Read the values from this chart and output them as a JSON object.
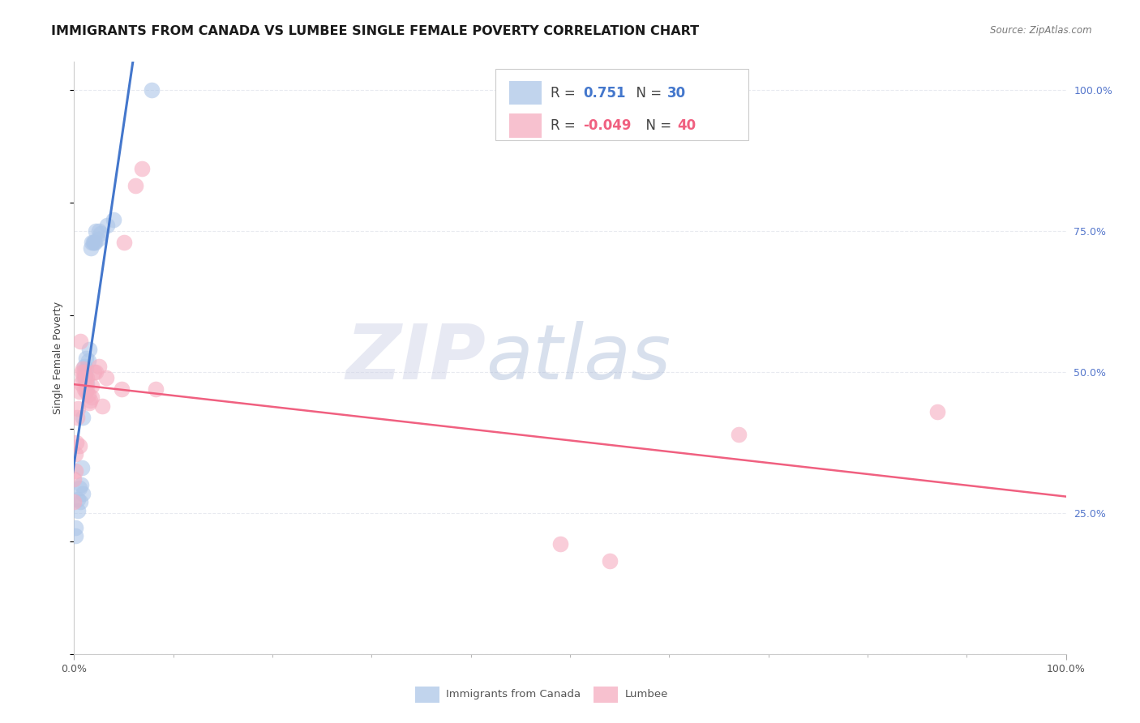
{
  "title": "IMMIGRANTS FROM CANADA VS LUMBEE SINGLE FEMALE POVERTY CORRELATION CHART",
  "source": "Source: ZipAtlas.com",
  "ylabel": "Single Female Poverty",
  "legend_label1": "Immigrants from Canada",
  "legend_label2": "Lumbee",
  "r1": 0.751,
  "n1": 30,
  "r2": -0.049,
  "n2": 40,
  "blue_scatter_color": "#adc6e8",
  "pink_scatter_color": "#f5adc0",
  "blue_line_color": "#4477cc",
  "pink_line_color": "#f06080",
  "grid_color": "#e8eaf0",
  "bg_color": "#ffffff",
  "right_axis_color": "#5577cc",
  "title_color": "#1a1a1a",
  "source_color": "#777777",
  "title_fontsize": 11.5,
  "axis_label_fontsize": 9,
  "tick_fontsize": 9,
  "blue_x": [
    0.001,
    0.001,
    0.004,
    0.004,
    0.005,
    0.006,
    0.007,
    0.008,
    0.009,
    0.009,
    0.01,
    0.01,
    0.011,
    0.012,
    0.012,
    0.013,
    0.014,
    0.015,
    0.017,
    0.018,
    0.019,
    0.02,
    0.021,
    0.022,
    0.024,
    0.025,
    0.027,
    0.033,
    0.04,
    0.078
  ],
  "blue_y": [
    0.21,
    0.225,
    0.255,
    0.275,
    0.295,
    0.27,
    0.3,
    0.33,
    0.285,
    0.42,
    0.49,
    0.51,
    0.495,
    0.505,
    0.525,
    0.48,
    0.52,
    0.54,
    0.72,
    0.73,
    0.73,
    0.73,
    0.73,
    0.75,
    0.735,
    0.75,
    0.745,
    0.76,
    0.77,
    1.0
  ],
  "pink_x": [
    0.0,
    0.0,
    0.001,
    0.001,
    0.002,
    0.003,
    0.004,
    0.005,
    0.005,
    0.006,
    0.007,
    0.008,
    0.009,
    0.009,
    0.01,
    0.01,
    0.011,
    0.012,
    0.012,
    0.013,
    0.013,
    0.014,
    0.015,
    0.016,
    0.018,
    0.018,
    0.02,
    0.022,
    0.025,
    0.028,
    0.032,
    0.048,
    0.05,
    0.062,
    0.068,
    0.082,
    0.49,
    0.54,
    0.67,
    0.87
  ],
  "pink_y": [
    0.27,
    0.31,
    0.325,
    0.355,
    0.375,
    0.42,
    0.435,
    0.37,
    0.465,
    0.555,
    0.48,
    0.5,
    0.49,
    0.505,
    0.47,
    0.5,
    0.49,
    0.465,
    0.48,
    0.47,
    0.49,
    0.46,
    0.445,
    0.45,
    0.455,
    0.475,
    0.5,
    0.5,
    0.51,
    0.44,
    0.49,
    0.47,
    0.73,
    0.83,
    0.86,
    0.47,
    0.195,
    0.165,
    0.39,
    0.43
  ],
  "xlim": [
    0.0,
    1.0
  ],
  "ylim": [
    0.0,
    1.05
  ],
  "yticks": [
    0.0,
    0.25,
    0.5,
    0.75,
    1.0
  ],
  "ytick_labels_right": [
    "",
    "25.0%",
    "50.0%",
    "75.0%",
    "100.0%"
  ],
  "xticks_major": [
    0.0,
    1.0
  ],
  "xticks_minor": [
    0.1,
    0.2,
    0.3,
    0.4,
    0.5,
    0.6,
    0.7,
    0.8,
    0.9
  ],
  "xtick_labels": [
    "0.0%",
    "100.0%"
  ]
}
